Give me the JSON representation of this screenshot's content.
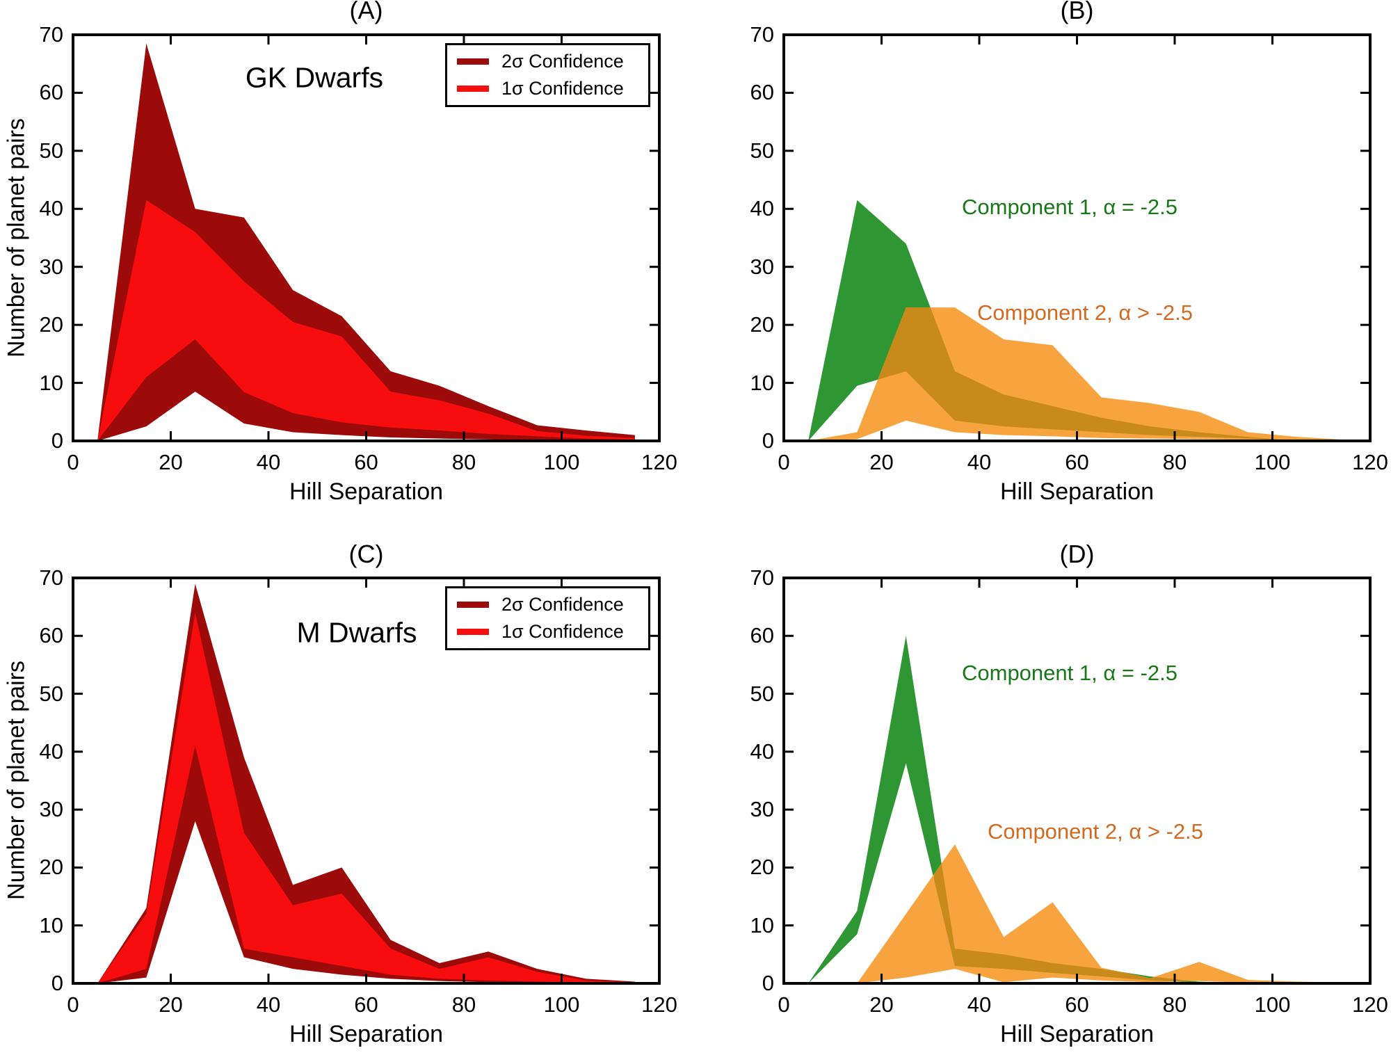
{
  "figure": {
    "xlabel": "Hill Separation",
    "ylabel": "Number of planet pairs",
    "legend": [
      {
        "label": "2σ Confidence",
        "color": "#9C0A0A"
      },
      {
        "label": "1σ Confidence",
        "color": "#F70D0D"
      }
    ],
    "annotations": {
      "component1": "Component 1, α = -2.5",
      "component2": "Component 2, α > -2.5"
    },
    "colors": {
      "dark_red": "#9C0A0A",
      "bright_red": "#F70D0D",
      "green": "#2E9632",
      "orange": "#F7A440",
      "overlap_olive": "#C98A1C",
      "green_text": "#187818",
      "orange_text": "#D2691E",
      "axis": "#000000"
    }
  },
  "chart_data": [
    {
      "id": "A",
      "title": "(A)",
      "type": "area",
      "inset_label": "GK Dwarfs",
      "xlabel": "Hill Separation",
      "ylabel": "Number of planet pairs",
      "xlim": [
        0,
        120
      ],
      "ylim": [
        0,
        70
      ],
      "xticks": [
        0,
        20,
        40,
        60,
        80,
        100,
        120
      ],
      "yticks": [
        0,
        10,
        20,
        30,
        40,
        50,
        60,
        70
      ],
      "x": [
        5,
        15,
        25,
        35,
        45,
        55,
        65,
        75,
        85,
        95,
        105,
        115
      ],
      "bands": [
        {
          "name": "2-sigma confidence band",
          "color": "#9C0A0A",
          "upper": [
            0,
            68.5,
            40,
            38.5,
            26,
            21.5,
            12,
            9.5,
            6,
            2.7,
            1.8,
            1
          ],
          "lower": [
            0,
            2.5,
            8.5,
            3,
            1.5,
            1,
            0.6,
            0.4,
            0.25,
            0.15,
            0.1,
            0
          ]
        },
        {
          "name": "1-sigma confidence band",
          "color": "#F70D0D",
          "upper": [
            0,
            41.5,
            36,
            27.5,
            20.5,
            18,
            8.5,
            7,
            4.7,
            1.7,
            0.9,
            0.5
          ],
          "lower": [
            0,
            11,
            17.5,
            8.4,
            4.8,
            3.2,
            2.3,
            1.8,
            1.2,
            0.8,
            0.4,
            0.2
          ]
        }
      ],
      "legend_position": "upper right"
    },
    {
      "id": "B",
      "title": "(B)",
      "type": "area",
      "xlabel": "Hill Separation",
      "xlim": [
        0,
        120
      ],
      "ylim": [
        0,
        70
      ],
      "xticks": [
        0,
        20,
        40,
        60,
        80,
        100,
        120
      ],
      "yticks": [
        0,
        10,
        20,
        30,
        40,
        50,
        60,
        70
      ],
      "x": [
        5,
        15,
        25,
        35,
        45,
        55,
        65,
        75,
        85,
        95,
        105,
        115
      ],
      "bands": [
        {
          "name": "Component 1, α = -2.5",
          "color": "#2E9632",
          "upper": [
            0,
            41.5,
            34,
            12,
            8,
            6,
            4,
            2.5,
            1.5,
            0.7,
            0,
            0
          ],
          "lower": [
            0,
            9.5,
            12,
            3.5,
            2.5,
            2,
            1.5,
            1,
            0.7,
            0.4,
            0,
            0
          ]
        },
        {
          "name": "Component 2, α > -2.5",
          "color": "#F7A440",
          "upper": [
            0,
            1.5,
            23,
            23,
            17.5,
            16.5,
            7.5,
            6.5,
            5,
            1.5,
            0.7,
            0.2
          ],
          "lower": [
            0,
            0.3,
            3.5,
            1.5,
            1,
            0.8,
            0.5,
            0.4,
            0.3,
            0.2,
            0.1,
            0
          ]
        }
      ],
      "overlap_color": "#C98A1C"
    },
    {
      "id": "C",
      "title": "(C)",
      "type": "area",
      "inset_label": "M Dwarfs",
      "xlabel": "Hill Separation",
      "ylabel": "Number of planet pairs",
      "xlim": [
        0,
        120
      ],
      "ylim": [
        0,
        70
      ],
      "xticks": [
        0,
        20,
        40,
        60,
        80,
        100,
        120
      ],
      "yticks": [
        0,
        10,
        20,
        30,
        40,
        50,
        60,
        70
      ],
      "x": [
        5,
        15,
        25,
        35,
        45,
        55,
        65,
        75,
        85,
        95,
        105,
        115
      ],
      "bands": [
        {
          "name": "2-sigma confidence band",
          "color": "#9C0A0A",
          "upper": [
            0,
            13,
            69,
            39,
            17,
            20,
            7.5,
            3.5,
            5.5,
            2.5,
            0.8,
            0.3
          ],
          "lower": [
            0,
            1,
            28,
            4.5,
            2.5,
            1.5,
            0.8,
            0.4,
            0.2,
            0.1,
            0,
            0
          ]
        },
        {
          "name": "1-sigma confidence band",
          "color": "#F70D0D",
          "upper": [
            0,
            12,
            64,
            26,
            13.5,
            15.5,
            6,
            2.5,
            4.5,
            2,
            0.5,
            0.2
          ],
          "lower": [
            0,
            2.5,
            41,
            6,
            4.5,
            3,
            1.5,
            0.8,
            0.5,
            0.3,
            0.1,
            0
          ]
        }
      ],
      "legend_position": "upper right"
    },
    {
      "id": "D",
      "title": "(D)",
      "type": "area",
      "xlabel": "Hill Separation",
      "xlim": [
        0,
        120
      ],
      "ylim": [
        0,
        70
      ],
      "xticks": [
        0,
        20,
        40,
        60,
        80,
        100,
        120
      ],
      "yticks": [
        0,
        10,
        20,
        30,
        40,
        50,
        60,
        70
      ],
      "x": [
        5,
        15,
        25,
        35,
        45,
        55,
        65,
        75,
        85,
        95,
        105,
        115
      ],
      "bands": [
        {
          "name": "Component 1, α = -2.5",
          "color": "#2E9632",
          "upper": [
            0,
            12.5,
            60,
            6,
            5,
            3.5,
            2.5,
            1.2,
            0.3,
            0,
            0,
            0
          ],
          "lower": [
            0,
            8.5,
            38,
            3,
            2.5,
            1.8,
            1.2,
            0.5,
            0.1,
            0,
            0,
            0
          ]
        },
        {
          "name": "Component 2, α > -2.5",
          "color": "#F7A440",
          "upper": [
            0,
            0,
            12,
            24,
            8,
            14,
            2.7,
            0.9,
            3.7,
            0.6,
            0.3,
            0.15
          ],
          "lower": [
            0,
            0,
            1,
            2.5,
            0.2,
            1,
            0.5,
            0.2,
            0.4,
            0.1,
            0,
            0
          ]
        }
      ],
      "overlap_color": "#C98A1C"
    }
  ]
}
